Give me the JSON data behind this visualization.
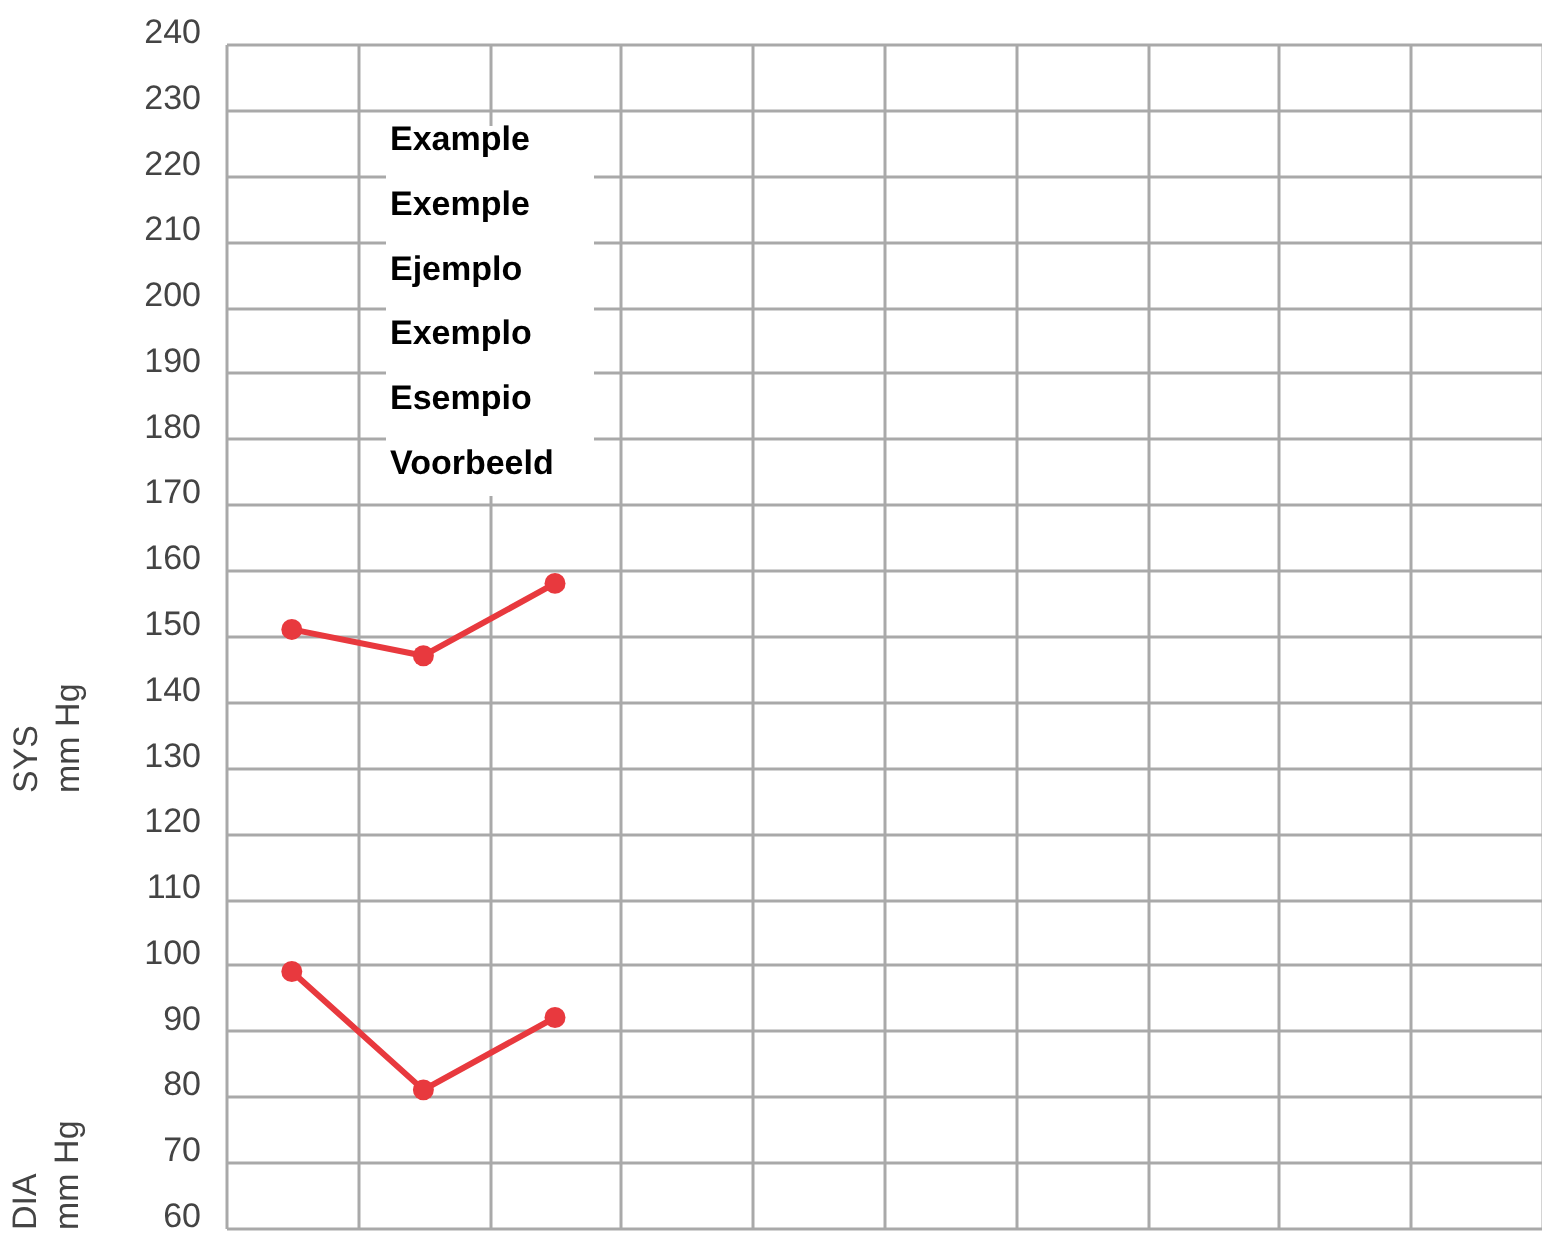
{
  "chart_data": {
    "type": "line",
    "ylabel": "SYS mm Hg",
    "annotations": [
      "Example",
      "Exemple",
      "Ejemplo",
      "Exemplo",
      "Esempio",
      "Voorbeeld",
      "DIA mm Hg"
    ],
    "categories": [
      null,
      null,
      null,
      null,
      null,
      null,
      null,
      null,
      null,
      null
    ],
    "series": [
      {
        "color": "#e8393e",
        "values": [
          151,
          147,
          158,
          null,
          null,
          null,
          null,
          null,
          null,
          null
        ]
      },
      {
        "color": "#e8393e",
        "values": [
          99,
          81,
          92,
          null,
          null,
          null,
          null,
          null,
          null,
          null
        ]
      }
    ],
    "ylim": [
      60,
      240
    ],
    "yticks": [
      60,
      70,
      80,
      90,
      100,
      110,
      120,
      130,
      140,
      150,
      160,
      170,
      180,
      190,
      200,
      210,
      220,
      230,
      240
    ],
    "grid": true,
    "tick_labels": "y",
    "marker": "circle",
    "line_style": "solid"
  }
}
